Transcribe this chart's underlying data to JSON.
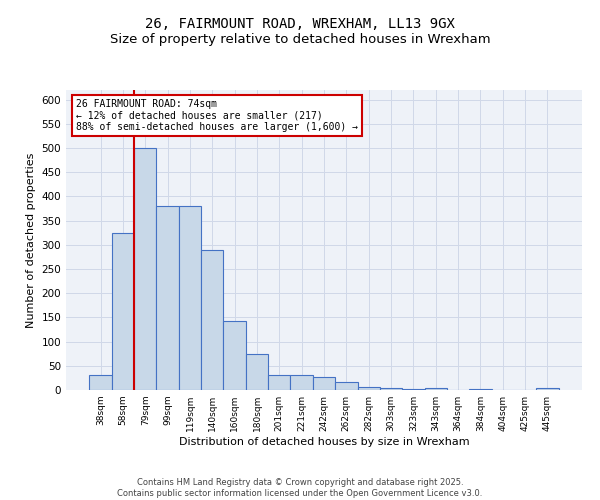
{
  "title1": "26, FAIRMOUNT ROAD, WREXHAM, LL13 9GX",
  "title2": "Size of property relative to detached houses in Wrexham",
  "xlabel": "Distribution of detached houses by size in Wrexham",
  "ylabel": "Number of detached properties",
  "categories": [
    "38sqm",
    "58sqm",
    "79sqm",
    "99sqm",
    "119sqm",
    "140sqm",
    "160sqm",
    "180sqm",
    "201sqm",
    "221sqm",
    "242sqm",
    "262sqm",
    "282sqm",
    "303sqm",
    "323sqm",
    "343sqm",
    "364sqm",
    "384sqm",
    "404sqm",
    "425sqm",
    "445sqm"
  ],
  "values": [
    30,
    325,
    500,
    380,
    380,
    290,
    143,
    75,
    32,
    30,
    27,
    16,
    7,
    4,
    2,
    4,
    1,
    2,
    1,
    1,
    5
  ],
  "bar_color": "#c8d8e8",
  "bar_edge_color": "#4472c4",
  "annotation_text": "26 FAIRMOUNT ROAD: 74sqm\n← 12% of detached houses are smaller (217)\n88% of semi-detached houses are larger (1,600) →",
  "annotation_box_color": "#ffffff",
  "annotation_edge_color": "#cc0000",
  "footer": "Contains HM Land Registry data © Crown copyright and database right 2025.\nContains public sector information licensed under the Open Government Licence v3.0.",
  "ylim": [
    0,
    620
  ],
  "yticks": [
    0,
    50,
    100,
    150,
    200,
    250,
    300,
    350,
    400,
    450,
    500,
    550,
    600
  ],
  "grid_color": "#d0d8e8",
  "bg_color": "#eef2f8",
  "fig_bg_color": "#ffffff",
  "red_line_color": "#cc0000",
  "title_fontsize": 10,
  "subtitle_fontsize": 9.5
}
